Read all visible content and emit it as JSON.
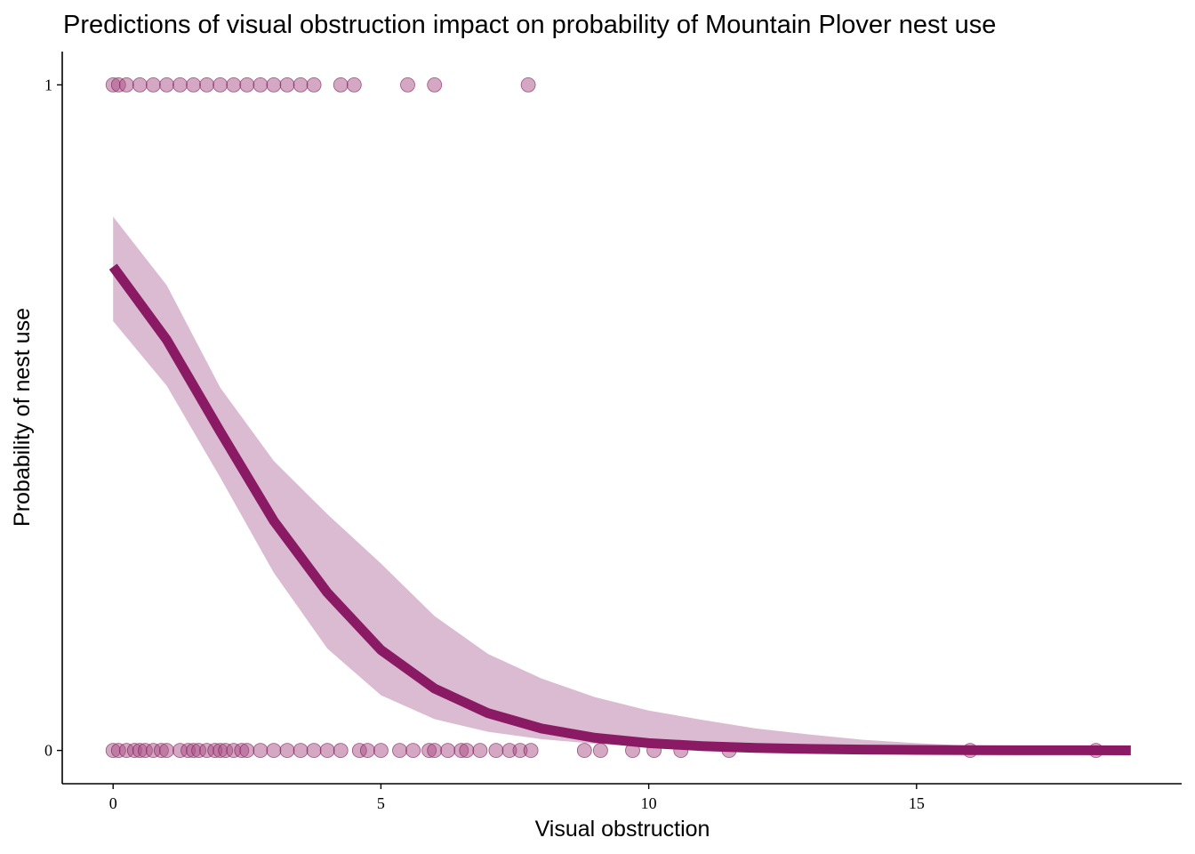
{
  "chart_data": {
    "type": "scatter",
    "title": "Predictions of visual obstruction impact on probability of Mountain Plover nest use",
    "xlabel": "Visual obstruction",
    "ylabel": "Probability of nest use",
    "xlim": [
      -0.95,
      19.95
    ],
    "ylim": [
      -0.05,
      1.05
    ],
    "x_ticks": [
      0,
      5,
      10,
      15
    ],
    "x_tick_labels": [
      "0",
      "5",
      "10",
      "15"
    ],
    "y_ticks": [
      0,
      1
    ],
    "y_tick_labels": [
      "0",
      "1"
    ],
    "grid": false,
    "legend": "none",
    "colors": {
      "line": "#8b1a64",
      "ribbon": "#dbbbd1",
      "point_fill": "#a94f86",
      "point_stroke": "#7a1a58"
    },
    "fitted_curve": {
      "x": [
        0,
        1,
        2,
        3,
        4,
        5,
        6,
        7,
        8,
        9,
        10,
        11,
        12,
        13,
        14,
        15,
        16,
        17,
        18,
        19
      ],
      "y": [
        0.727,
        0.617,
        0.479,
        0.345,
        0.237,
        0.151,
        0.093,
        0.056,
        0.033,
        0.019,
        0.011,
        0.0065,
        0.0038,
        0.0022,
        0.0013,
        0.0008,
        0.0005,
        0.0003,
        0.0002,
        0.0001
      ],
      "lower": [
        0.645,
        0.548,
        0.41,
        0.267,
        0.153,
        0.083,
        0.047,
        0.028,
        0.017,
        0.01,
        0.006,
        0.003,
        0.002,
        0.001,
        0.0005,
        0.0003,
        0.0002,
        0.0001,
        0.0001,
        0.0
      ],
      "upper": [
        0.802,
        0.699,
        0.545,
        0.435,
        0.355,
        0.281,
        0.202,
        0.145,
        0.108,
        0.08,
        0.06,
        0.046,
        0.033,
        0.024,
        0.016,
        0.011,
        0.007,
        0.004,
        0.002,
        0.001
      ]
    },
    "observed_used": {
      "y": 1,
      "x": [
        0,
        0.1,
        0.25,
        0.5,
        0.75,
        1.0,
        1.25,
        1.5,
        1.75,
        2.0,
        2.25,
        2.5,
        2.75,
        3.0,
        3.25,
        3.5,
        3.75,
        4.25,
        4.5,
        5.5,
        6.0,
        7.75
      ]
    },
    "observed_unused": {
      "y": 0,
      "x": [
        0,
        0.1,
        0.25,
        0.4,
        0.5,
        0.6,
        0.75,
        0.9,
        1.0,
        1.25,
        1.4,
        1.5,
        1.6,
        1.75,
        1.9,
        2.0,
        2.1,
        2.25,
        2.4,
        2.5,
        2.75,
        3.0,
        3.25,
        3.5,
        3.75,
        4.0,
        4.25,
        4.6,
        4.75,
        5.0,
        5.35,
        5.6,
        5.9,
        6.0,
        6.25,
        6.5,
        6.6,
        6.85,
        7.15,
        7.4,
        7.6,
        7.8,
        8.8,
        9.1,
        9.7,
        10.1,
        10.6,
        11.5,
        16.0,
        18.35
      ]
    }
  }
}
